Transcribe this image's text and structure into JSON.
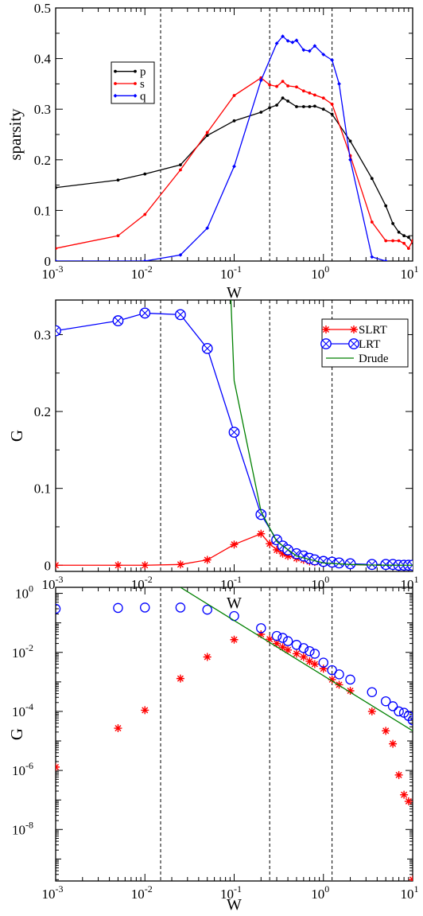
{
  "chart_data": [
    {
      "type": "line",
      "xscale": "log",
      "xlim": [
        0.001,
        10
      ],
      "ylim": [
        0,
        0.5
      ],
      "xlabel": "W",
      "ylabel": "sparsity",
      "yticks": [
        0,
        0.1,
        0.2,
        0.3,
        0.4,
        0.5
      ],
      "ytick_labels": [
        "0",
        "0.1",
        "0.2",
        "0.3",
        "0.4",
        "0.5"
      ],
      "xticks": [
        0.001,
        0.01,
        0.1,
        1,
        10
      ],
      "xtick_labels": [
        [
          "10",
          "-3"
        ],
        [
          "10",
          "-2"
        ],
        [
          "10",
          "-1"
        ],
        [
          "10",
          "0"
        ],
        [
          "10",
          "1"
        ]
      ],
      "vlines": [
        0.015,
        0.25,
        1.25
      ],
      "legend_position": "upper-left",
      "series": [
        {
          "name": "p",
          "color": "#000000",
          "marker": "dot",
          "x": [
            0.001,
            0.005,
            0.01,
            0.025,
            0.05,
            0.1,
            0.2,
            0.25,
            0.3,
            0.35,
            0.4,
            0.5,
            0.6,
            0.7,
            0.8,
            1.0,
            1.25,
            2.0,
            3.5,
            5.0,
            6.0,
            7.0,
            8.0,
            9.0,
            10.0
          ],
          "y": [
            0.145,
            0.16,
            0.172,
            0.19,
            0.248,
            0.277,
            0.294,
            0.303,
            0.308,
            0.322,
            0.316,
            0.305,
            0.305,
            0.305,
            0.306,
            0.3,
            0.29,
            0.237,
            0.163,
            0.109,
            0.074,
            0.057,
            0.05,
            0.047,
            0.036
          ]
        },
        {
          "name": "s",
          "color": "#ff0000",
          "marker": "dot",
          "x": [
            0.001,
            0.005,
            0.01,
            0.025,
            0.05,
            0.1,
            0.2,
            0.25,
            0.3,
            0.35,
            0.4,
            0.5,
            0.6,
            0.7,
            0.8,
            1.0,
            1.25,
            2.0,
            3.5,
            5.0,
            6.0,
            7.0,
            8.0,
            9.0,
            10.0
          ],
          "y": [
            0.025,
            0.05,
            0.092,
            0.18,
            0.254,
            0.327,
            0.362,
            0.348,
            0.345,
            0.355,
            0.346,
            0.344,
            0.336,
            0.332,
            0.328,
            0.322,
            0.31,
            0.208,
            0.077,
            0.04,
            0.04,
            0.04,
            0.035,
            0.025,
            0.04
          ]
        },
        {
          "name": "q",
          "color": "#0000ff",
          "marker": "diamond",
          "x": [
            0.001,
            0.01,
            0.025,
            0.05,
            0.1,
            0.2,
            0.3,
            0.35,
            0.4,
            0.45,
            0.5,
            0.6,
            0.7,
            0.8,
            1.0,
            1.25,
            1.5,
            2.0,
            3.5,
            5.0
          ],
          "y": [
            0.0,
            0.0,
            0.012,
            0.065,
            0.187,
            0.357,
            0.43,
            0.444,
            0.435,
            0.432,
            0.436,
            0.417,
            0.415,
            0.425,
            0.408,
            0.397,
            0.35,
            0.2,
            0.008,
            0.0
          ]
        }
      ]
    },
    {
      "type": "line",
      "xscale": "log",
      "xlim": [
        0.001,
        10
      ],
      "ylim": [
        -0.008,
        0.345
      ],
      "xlabel": "W",
      "ylabel": "G",
      "yticks": [
        0,
        0.1,
        0.2,
        0.3
      ],
      "ytick_labels": [
        "0",
        "0.1",
        "0.2",
        "0.3"
      ],
      "xticks": [
        0.001,
        0.01,
        0.1,
        1,
        10
      ],
      "xtick_labels": [
        [
          "10",
          "-3"
        ],
        [
          "10",
          "-2"
        ],
        [
          "10",
          "-1"
        ],
        [
          "10",
          "0"
        ],
        [
          "10",
          "1"
        ]
      ],
      "vlines": [
        0.015,
        0.25,
        1.25
      ],
      "legend_position": "top-right",
      "series": [
        {
          "name": "SLRT",
          "color": "#ff0000",
          "marker": "star",
          "x": [
            0.001,
            0.005,
            0.01,
            0.025,
            0.05,
            0.1,
            0.2,
            0.25,
            0.3,
            0.35,
            0.4,
            0.5,
            0.6,
            0.7,
            0.8,
            1.0,
            1.25,
            1.5,
            2.0,
            3.5,
            5.0,
            6.0,
            7.0,
            8.0,
            9.0,
            10.0
          ],
          "y": [
            0.0,
            0.0,
            0.0,
            0.001,
            0.007,
            0.027,
            0.041,
            0.028,
            0.02,
            0.015,
            0.012,
            0.009,
            0.007,
            0.005,
            0.004,
            0.003,
            0.002,
            0.002,
            0.001,
            0.0,
            0.0,
            0.0,
            0.0,
            0.0,
            0.0,
            0.0
          ]
        },
        {
          "name": "LRT",
          "color": "#0000ff",
          "marker": "crossed-circle",
          "x": [
            0.001,
            0.005,
            0.01,
            0.025,
            0.05,
            0.1,
            0.2,
            0.3,
            0.35,
            0.4,
            0.5,
            0.6,
            0.7,
            0.8,
            1.0,
            1.25,
            1.5,
            2.0,
            3.5,
            5.0,
            6.0,
            7.0,
            8.0,
            9.0,
            10.0
          ],
          "y": [
            0.305,
            0.318,
            0.328,
            0.326,
            0.282,
            0.173,
            0.066,
            0.033,
            0.025,
            0.02,
            0.015,
            0.012,
            0.009,
            0.007,
            0.005,
            0.004,
            0.003,
            0.002,
            0.001,
            0.001,
            0.001,
            0.0,
            0.0,
            0.0,
            0.0
          ]
        },
        {
          "name": "Drude",
          "color": "#008000",
          "marker": "none",
          "x": [
            0.075,
            0.1,
            0.2,
            0.3,
            0.5,
            1.0,
            2.0,
            3.5,
            5.0,
            10.0
          ],
          "y": [
            0.6,
            0.24,
            0.07,
            0.031,
            0.012,
            0.003,
            0.001,
            0.0003,
            0.0001,
            0.0
          ]
        }
      ]
    },
    {
      "type": "scatter",
      "xscale": "log",
      "yscale": "log",
      "xlim": [
        0.001,
        10
      ],
      "ylim": [
        1.8e-10,
        1.6
      ],
      "xlabel": "W",
      "ylabel": "G",
      "yticks": [
        1e-08,
        1e-06,
        0.0001,
        0.01,
        1
      ],
      "ytick_labels": [
        [
          "10",
          "-8"
        ],
        [
          "10",
          "-6"
        ],
        [
          "10",
          "-4"
        ],
        [
          "10",
          "-2"
        ],
        [
          "10",
          "0"
        ]
      ],
      "xticks": [
        0.001,
        0.01,
        0.1,
        1,
        10
      ],
      "xtick_labels": [
        [
          "10",
          "-3"
        ],
        [
          "10",
          "-2"
        ],
        [
          "10",
          "-1"
        ],
        [
          "10",
          "0"
        ],
        [
          "10",
          "1"
        ]
      ],
      "vlines": [
        0.015,
        0.25,
        1.25
      ],
      "series": [
        {
          "name": "SLRT",
          "color": "#ff0000",
          "marker": "star",
          "x": [
            0.001,
            0.005,
            0.01,
            0.025,
            0.05,
            0.1,
            0.2,
            0.25,
            0.3,
            0.35,
            0.4,
            0.5,
            0.6,
            0.7,
            0.8,
            1.0,
            1.25,
            1.5,
            2.0,
            3.5,
            5.0,
            6.0,
            7.0,
            8.0,
            9.0,
            10.0
          ],
          "y": [
            1.3e-06,
            2.7e-05,
            0.00011,
            0.0013,
            0.007,
            0.027,
            0.041,
            0.028,
            0.02,
            0.015,
            0.012,
            0.009,
            0.007,
            0.005,
            0.004,
            0.0028,
            0.0012,
            0.0008,
            0.0005,
            0.0001,
            2.2e-05,
            8e-06,
            7e-07,
            1.5e-07,
            9e-08,
            2e-10
          ]
        },
        {
          "name": "LRT",
          "color": "#0000ff",
          "marker": "circle",
          "x": [
            0.001,
            0.005,
            0.01,
            0.025,
            0.05,
            0.1,
            0.2,
            0.3,
            0.35,
            0.4,
            0.5,
            0.6,
            0.7,
            0.8,
            1.0,
            1.25,
            1.5,
            2.0,
            3.5,
            5.0,
            6.0,
            7.0,
            8.0,
            9.0,
            10.0
          ],
          "y": [
            0.3,
            0.32,
            0.33,
            0.33,
            0.28,
            0.17,
            0.066,
            0.036,
            0.031,
            0.024,
            0.018,
            0.014,
            0.011,
            0.009,
            0.0045,
            0.0025,
            0.0018,
            0.0012,
            0.00045,
            0.00022,
            0.00015,
            0.0001,
            9e-05,
            7e-05,
            5e-05
          ]
        },
        {
          "name": "Drude",
          "color": "#008000",
          "marker": "none",
          "line": true,
          "x": [
            0.025,
            10.0
          ],
          "y": [
            1.6,
            2.2e-05
          ]
        }
      ]
    }
  ]
}
